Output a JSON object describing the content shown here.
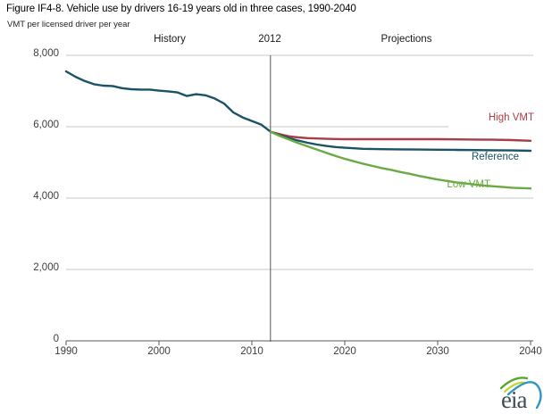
{
  "header": {
    "title": "Figure IF4-8. Vehicle use by drivers 16-19 years old in three cases, 1990-2040",
    "subtitle": "VMT per licensed driver  per year"
  },
  "region_labels": {
    "history": "History",
    "divider": "2012",
    "projections": "Projections"
  },
  "legend": {
    "high_vmt": "High VMT",
    "reference": "Reference",
    "low_vmt": "Low VMT"
  },
  "colors": {
    "history": "#1a5266",
    "high_vmt": "#aa3c44",
    "reference": "#1a5266",
    "low_vmt": "#6aaa43",
    "gridline": "#c9c9c9",
    "axis": "#595959",
    "divider": "#555555",
    "tick_text": "#3d3d3d",
    "logo_text": "#3f4b55",
    "logo_green": "#5aa431",
    "logo_yellow": "#c3d62e",
    "logo_blue": "#2e96c6"
  },
  "logo": {
    "text": "eia"
  },
  "chart_data": {
    "type": "line",
    "title": "Figure IF4-8. Vehicle use by drivers 16-19 years old in three cases, 1990-2040",
    "ylabel": "VMT per licensed driver per year",
    "xlabel": "",
    "x_axis": {
      "min": 1990,
      "max": 2040,
      "ticks": [
        {
          "label": "1990",
          "value": 1990
        },
        {
          "label": "2000",
          "value": 2000
        },
        {
          "label": "2010",
          "value": 2010
        },
        {
          "label": "2020",
          "value": 2020
        },
        {
          "label": "2030",
          "value": 2030
        },
        {
          "label": "2040",
          "value": 2040
        }
      ]
    },
    "y_axis": {
      "min": 0,
      "max": 8000,
      "ticks": [
        {
          "label": "8,000",
          "value": 8000
        },
        {
          "label": "6,000",
          "value": 6000
        },
        {
          "label": "4,000",
          "value": 4000
        },
        {
          "label": "2,000",
          "value": 2000
        },
        {
          "label": "0",
          "value": 0
        }
      ]
    },
    "divider_year": 2012,
    "grid": true,
    "legend_position": "right-of-lines",
    "series": [
      {
        "name": "History",
        "color_key": "history",
        "points": [
          [
            1990,
            7550
          ],
          [
            1991,
            7400
          ],
          [
            1992,
            7280
          ],
          [
            1993,
            7190
          ],
          [
            1994,
            7150
          ],
          [
            1995,
            7140
          ],
          [
            1996,
            7080
          ],
          [
            1997,
            7050
          ],
          [
            1998,
            7040
          ],
          [
            1999,
            7040
          ],
          [
            2000,
            7010
          ],
          [
            2001,
            6990
          ],
          [
            2002,
            6960
          ],
          [
            2003,
            6860
          ],
          [
            2004,
            6910
          ],
          [
            2005,
            6880
          ],
          [
            2006,
            6790
          ],
          [
            2007,
            6650
          ],
          [
            2008,
            6400
          ],
          [
            2009,
            6260
          ],
          [
            2010,
            6160
          ],
          [
            2011,
            6060
          ],
          [
            2012,
            5860
          ]
        ]
      },
      {
        "name": "High VMT",
        "color_key": "high_vmt",
        "points": [
          [
            2012,
            5860
          ],
          [
            2013,
            5790
          ],
          [
            2014,
            5730
          ],
          [
            2015,
            5700
          ],
          [
            2016,
            5680
          ],
          [
            2017,
            5670
          ],
          [
            2018,
            5660
          ],
          [
            2019,
            5655
          ],
          [
            2020,
            5650
          ],
          [
            2022,
            5650
          ],
          [
            2024,
            5650
          ],
          [
            2026,
            5650
          ],
          [
            2028,
            5650
          ],
          [
            2030,
            5650
          ],
          [
            2032,
            5645
          ],
          [
            2034,
            5640
          ],
          [
            2036,
            5635
          ],
          [
            2038,
            5625
          ],
          [
            2040,
            5605
          ]
        ]
      },
      {
        "name": "Reference",
        "color_key": "reference",
        "points": [
          [
            2012,
            5860
          ],
          [
            2013,
            5760
          ],
          [
            2014,
            5680
          ],
          [
            2015,
            5610
          ],
          [
            2016,
            5550
          ],
          [
            2017,
            5500
          ],
          [
            2018,
            5460
          ],
          [
            2019,
            5430
          ],
          [
            2020,
            5410
          ],
          [
            2021,
            5395
          ],
          [
            2022,
            5380
          ],
          [
            2024,
            5370
          ],
          [
            2026,
            5365
          ],
          [
            2028,
            5360
          ],
          [
            2030,
            5355
          ],
          [
            2032,
            5350
          ],
          [
            2034,
            5345
          ],
          [
            2036,
            5340
          ],
          [
            2038,
            5335
          ],
          [
            2040,
            5325
          ]
        ]
      },
      {
        "name": "Low VMT",
        "color_key": "low_vmt",
        "points": [
          [
            2012,
            5860
          ],
          [
            2013,
            5740
          ],
          [
            2014,
            5640
          ],
          [
            2015,
            5540
          ],
          [
            2016,
            5450
          ],
          [
            2017,
            5360
          ],
          [
            2018,
            5270
          ],
          [
            2019,
            5180
          ],
          [
            2020,
            5100
          ],
          [
            2021,
            5030
          ],
          [
            2022,
            4960
          ],
          [
            2023,
            4900
          ],
          [
            2024,
            4840
          ],
          [
            2025,
            4790
          ],
          [
            2026,
            4730
          ],
          [
            2027,
            4680
          ],
          [
            2028,
            4620
          ],
          [
            2029,
            4570
          ],
          [
            2030,
            4520
          ],
          [
            2031,
            4480
          ],
          [
            2032,
            4440
          ],
          [
            2033,
            4410
          ],
          [
            2034,
            4380
          ],
          [
            2035,
            4350
          ],
          [
            2036,
            4330
          ],
          [
            2037,
            4310
          ],
          [
            2038,
            4290
          ],
          [
            2039,
            4280
          ],
          [
            2040,
            4270
          ]
        ]
      }
    ]
  }
}
